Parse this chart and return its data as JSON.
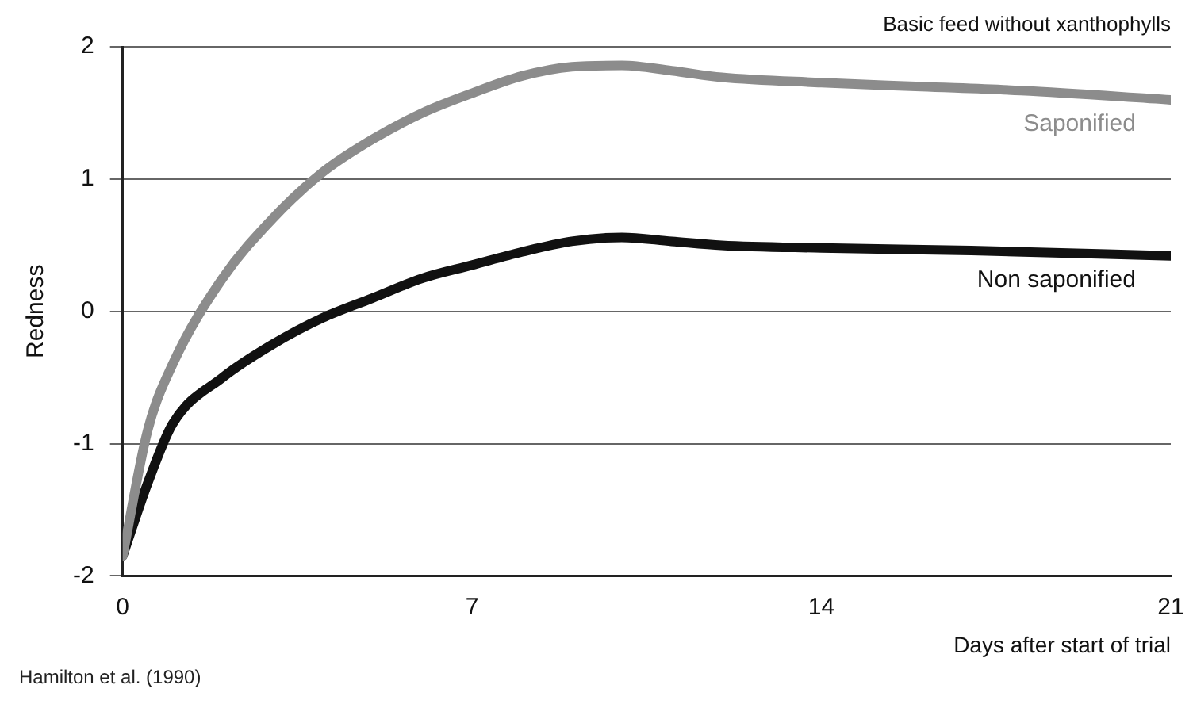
{
  "chart_data": {
    "type": "line",
    "title": "Basic feed without xanthophylls",
    "xlabel": "Days after start of trial",
    "ylabel": "Redness",
    "annotations": [
      "Hamilton et al. (1990)"
    ],
    "series": [
      {
        "name": "Saponified",
        "color": "#8c8c8c",
        "x": [
          0,
          0.5,
          1,
          2,
          3,
          4,
          5,
          6,
          7,
          8,
          9,
          10,
          11,
          12,
          14,
          16,
          18,
          21
        ],
        "values": [
          -1.85,
          -0.9,
          -0.4,
          0.25,
          0.7,
          1.05,
          1.3,
          1.5,
          1.65,
          1.78,
          1.85,
          1.86,
          1.82,
          1.77,
          1.73,
          1.7,
          1.67,
          1.6
        ]
      },
      {
        "name": "Non saponified",
        "color": "#111111",
        "x": [
          0,
          0.5,
          1,
          2,
          3,
          4,
          5,
          6,
          7,
          8,
          9,
          10,
          11,
          12,
          14,
          17,
          21
        ],
        "values": [
          -1.85,
          -1.3,
          -0.85,
          -0.5,
          -0.25,
          -0.05,
          0.1,
          0.25,
          0.35,
          0.45,
          0.53,
          0.56,
          0.53,
          0.5,
          0.48,
          0.46,
          0.42
        ]
      }
    ],
    "xlim": [
      0,
      21
    ],
    "xticks": [
      0,
      7,
      14,
      21
    ],
    "ylim": [
      -2,
      2
    ],
    "yticks": [
      -2,
      -1,
      0,
      1,
      2
    ],
    "grid": "y",
    "legend": false,
    "marker": "none",
    "line_style": "solid"
  }
}
